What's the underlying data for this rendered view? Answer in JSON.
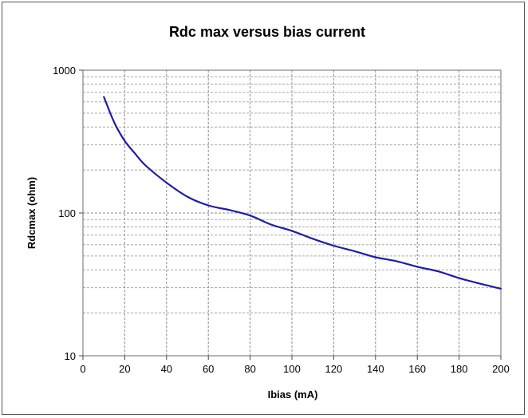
{
  "chart_data": {
    "type": "line",
    "title": "Rdc max versus bias current",
    "xlabel": "Ibias (mA)",
    "ylabel": "Rdcmax (ohm)",
    "xlim": [
      0,
      200
    ],
    "ylim": [
      10,
      1000
    ],
    "yscale": "log",
    "grid": true,
    "legend": "none",
    "x_ticks": [
      "0",
      "20",
      "40",
      "60",
      "80",
      "100",
      "120",
      "140",
      "160",
      "180",
      "200"
    ],
    "y_ticks": [
      "10",
      "100",
      "1000"
    ],
    "series": [
      {
        "color": "#1f1f9e",
        "x": [
          10,
          15,
          20,
          25,
          30,
          40,
          50,
          60,
          70,
          80,
          90,
          100,
          110,
          120,
          130,
          140,
          150,
          160,
          170,
          180,
          190,
          200
        ],
        "y": [
          650,
          430,
          320,
          260,
          215,
          163,
          130,
          113,
          105,
          96,
          83,
          75,
          66,
          59,
          54,
          49,
          46,
          42,
          39,
          35,
          32,
          29.5
        ]
      }
    ]
  }
}
